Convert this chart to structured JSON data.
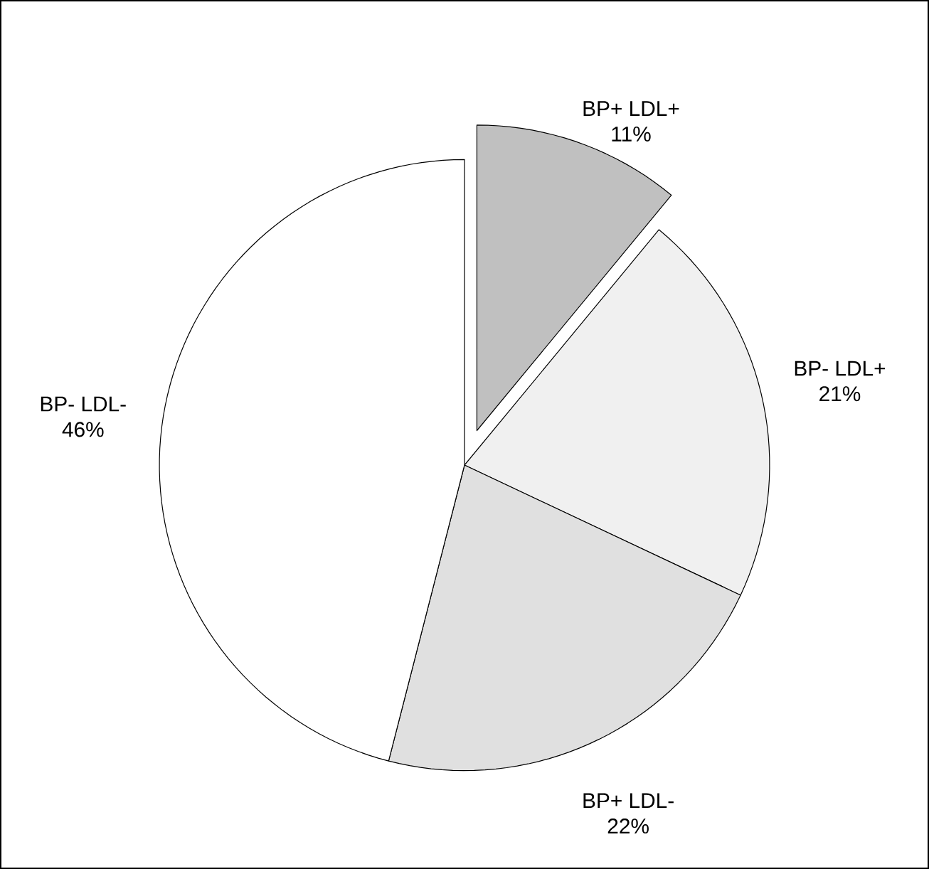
{
  "chart_data": {
    "type": "pie",
    "categories": [
      "BP+ LDL+",
      "BP- LDL+",
      "BP+ LDL-",
      "BP- LDL-"
    ],
    "values": [
      11,
      21,
      22,
      46
    ],
    "colors": [
      "#c0c0c0",
      "#f0f0f0",
      "#e0e0e0",
      "#ffffff"
    ],
    "value_labels": [
      "11%",
      "21%",
      "22%",
      "46%"
    ]
  }
}
